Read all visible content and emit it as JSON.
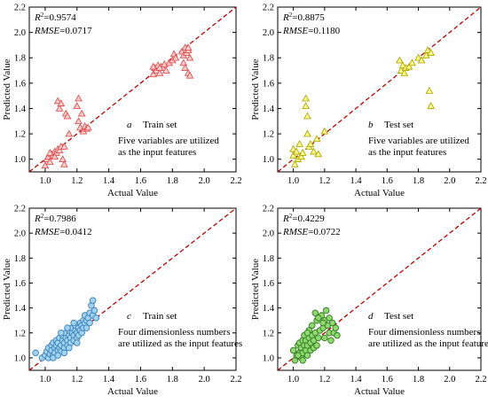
{
  "figure": {
    "chart_data": [
      {
        "panel": "a",
        "type": "scatter",
        "xlabel": "Actual Value",
        "ylabel": "Predicted Value",
        "xlim": [
          0.9,
          2.2
        ],
        "ylim": [
          0.9,
          2.2
        ],
        "xticks": [
          "1.0",
          "1.2",
          "1.4",
          "1.6",
          "1.8",
          "2.0",
          "2.2"
        ],
        "yticks": [
          "1.0",
          "1.2",
          "1.4",
          "1.6",
          "1.8",
          "2.0",
          "2.2"
        ],
        "stats": {
          "r2_label": "R",
          "r2_value": "=0.9574",
          "rmse_label": "RMSE",
          "rmse_value": "=0.0717"
        },
        "set_label": "Train set",
        "note_lines": [
          "Five variables are utilized",
          "as the input features"
        ],
        "marker": "triangle",
        "fill": "#ffd0d0",
        "stroke": "#e05050",
        "reference_line": {
          "from": [
            0.9,
            0.9
          ],
          "to": [
            2.2,
            2.2
          ],
          "color": "#c00000",
          "style": "dashed"
        },
        "points": [
          [
            1.0,
            0.95
          ],
          [
            1.01,
            1.0
          ],
          [
            1.02,
            1.02
          ],
          [
            1.03,
            0.98
          ],
          [
            1.04,
            1.04
          ],
          [
            1.05,
            1.03
          ],
          [
            1.06,
            1.06
          ],
          [
            1.07,
            1.05
          ],
          [
            1.08,
            1.08
          ],
          [
            1.09,
            1.07
          ],
          [
            1.1,
            1.1
          ],
          [
            1.08,
            1.46
          ],
          [
            1.09,
            1.4
          ],
          [
            1.1,
            1.44
          ],
          [
            1.11,
            1.0
          ],
          [
            1.12,
            1.1
          ],
          [
            1.13,
            1.36
          ],
          [
            1.14,
            1.34
          ],
          [
            1.15,
            1.2
          ],
          [
            1.2,
            1.42
          ],
          [
            1.21,
            1.48
          ],
          [
            1.21,
            1.3
          ],
          [
            1.22,
            1.25
          ],
          [
            1.23,
            1.36
          ],
          [
            1.24,
            1.22
          ],
          [
            1.25,
            1.26
          ],
          [
            1.26,
            1.24
          ],
          [
            1.27,
            1.25
          ],
          [
            1.03,
            1.05
          ],
          [
            1.06,
            1.02
          ],
          [
            1.12,
            0.96
          ],
          [
            1.68,
            1.67
          ],
          [
            1.69,
            1.72
          ],
          [
            1.7,
            1.7
          ],
          [
            1.71,
            1.74
          ],
          [
            1.72,
            1.68
          ],
          [
            1.73,
            1.73
          ],
          [
            1.74,
            1.72
          ],
          [
            1.75,
            1.75
          ],
          [
            1.76,
            1.7
          ],
          [
            1.78,
            1.76
          ],
          [
            1.8,
            1.78
          ],
          [
            1.81,
            1.83
          ],
          [
            1.82,
            1.8
          ],
          [
            1.86,
            1.85
          ],
          [
            1.87,
            1.82
          ],
          [
            1.88,
            1.88
          ],
          [
            1.89,
            1.84
          ],
          [
            1.9,
            1.86
          ],
          [
            1.91,
            1.8
          ],
          [
            1.87,
            1.76
          ],
          [
            1.88,
            1.72
          ],
          [
            1.9,
            1.68
          ],
          [
            1.91,
            1.66
          ],
          [
            1.68,
            1.73
          ],
          [
            1.72,
            1.72
          ],
          [
            1.9,
            1.88
          ]
        ]
      },
      {
        "panel": "b",
        "type": "scatter",
        "xlabel": "Actual Value",
        "ylabel": "Predicted Value",
        "xlim": [
          0.9,
          2.2
        ],
        "ylim": [
          0.9,
          2.2
        ],
        "xticks": [
          "1.0",
          "1.2",
          "1.4",
          "1.6",
          "1.8",
          "2.0",
          "2.2"
        ],
        "yticks": [
          "1.0",
          "1.2",
          "1.4",
          "1.6",
          "1.8",
          "2.0",
          "2.2"
        ],
        "stats": {
          "r2_label": "R",
          "r2_value": "=0.8875",
          "rmse_label": "RMSE",
          "rmse_value": "=0.1180"
        },
        "set_label": "Test set",
        "note_lines": [
          "Five variables are utilized",
          "as the input features"
        ],
        "marker": "triangle",
        "fill": "#ffff90",
        "stroke": "#b0a800",
        "reference_line": {
          "from": [
            0.9,
            0.9
          ],
          "to": [
            2.2,
            2.2
          ],
          "color": "#c00000",
          "style": "dashed"
        },
        "points": [
          [
            1.0,
            1.08
          ],
          [
            1.0,
            1.03
          ],
          [
            1.01,
            0.96
          ],
          [
            1.02,
            1.06
          ],
          [
            1.03,
            1.0
          ],
          [
            1.05,
            1.02
          ],
          [
            1.06,
            1.05
          ],
          [
            1.08,
            1.42
          ],
          [
            1.08,
            1.48
          ],
          [
            1.09,
            1.34
          ],
          [
            1.09,
            1.2
          ],
          [
            1.1,
            1.1
          ],
          [
            1.11,
            1.12
          ],
          [
            1.13,
            1.06
          ],
          [
            1.15,
            1.16
          ],
          [
            1.16,
            1.04
          ],
          [
            1.2,
            1.22
          ],
          [
            1.04,
            1.12
          ],
          [
            1.68,
            1.78
          ],
          [
            1.69,
            1.7
          ],
          [
            1.7,
            1.74
          ],
          [
            1.71,
            1.68
          ],
          [
            1.72,
            1.72
          ],
          [
            1.74,
            1.73
          ],
          [
            1.76,
            1.76
          ],
          [
            1.8,
            1.8
          ],
          [
            1.82,
            1.78
          ],
          [
            1.85,
            1.82
          ],
          [
            1.86,
            1.86
          ],
          [
            1.88,
            1.84
          ],
          [
            1.87,
            1.54
          ],
          [
            1.88,
            1.42
          ]
        ]
      },
      {
        "panel": "c",
        "type": "scatter",
        "xlabel": "Actual Value",
        "ylabel": "Predicted Value",
        "xlim": [
          0.9,
          2.2
        ],
        "ylim": [
          0.9,
          2.2
        ],
        "xticks": [
          "1.0",
          "1.2",
          "1.4",
          "1.6",
          "1.8",
          "2.0",
          "2.2"
        ],
        "yticks": [
          "1.0",
          "1.2",
          "1.4",
          "1.6",
          "1.8",
          "2.0",
          "2.2"
        ],
        "stats": {
          "r2_label": "R",
          "r2_value": "=0.7986",
          "rmse_label": "RMSE",
          "rmse_value": "=0.0412"
        },
        "set_label": "Train set",
        "note_lines": [
          "Four dimensionless numbers",
          "are utilized as the input features"
        ],
        "marker": "circle",
        "fill": "#9fd3f0",
        "stroke": "#3a7fb8",
        "reference_line": {
          "from": [
            0.9,
            0.9
          ],
          "to": [
            2.2,
            2.2
          ],
          "color": "#c00000",
          "style": "dashed"
        },
        "points": [
          [
            0.94,
            1.04
          ],
          [
            0.98,
            1.0
          ],
          [
            1.0,
            1.02
          ],
          [
            1.01,
            1.05
          ],
          [
            1.02,
            1.0
          ],
          [
            1.02,
            1.08
          ],
          [
            1.03,
            1.03
          ],
          [
            1.04,
            1.1
          ],
          [
            1.04,
            1.06
          ],
          [
            1.05,
            1.02
          ],
          [
            1.05,
            1.12
          ],
          [
            1.06,
            1.08
          ],
          [
            1.06,
            1.04
          ],
          [
            1.07,
            1.1
          ],
          [
            1.07,
            1.14
          ],
          [
            1.08,
            1.06
          ],
          [
            1.08,
            1.12
          ],
          [
            1.09,
            1.08
          ],
          [
            1.09,
            1.16
          ],
          [
            1.1,
            1.1
          ],
          [
            1.1,
            1.05
          ],
          [
            1.11,
            1.14
          ],
          [
            1.11,
            1.18
          ],
          [
            1.12,
            1.12
          ],
          [
            1.12,
            1.08
          ],
          [
            1.13,
            1.16
          ],
          [
            1.13,
            1.2
          ],
          [
            1.14,
            1.14
          ],
          [
            1.14,
            1.1
          ],
          [
            1.15,
            1.18
          ],
          [
            1.15,
            1.22
          ],
          [
            1.16,
            1.16
          ],
          [
            1.16,
            1.12
          ],
          [
            1.17,
            1.2
          ],
          [
            1.17,
            1.24
          ],
          [
            1.18,
            1.18
          ],
          [
            1.18,
            1.14
          ],
          [
            1.19,
            1.22
          ],
          [
            1.19,
            1.26
          ],
          [
            1.2,
            1.2
          ],
          [
            1.2,
            1.16
          ],
          [
            1.21,
            1.24
          ],
          [
            1.21,
            1.18
          ],
          [
            1.22,
            1.28
          ],
          [
            1.22,
            1.22
          ],
          [
            1.23,
            1.26
          ],
          [
            1.23,
            1.2
          ],
          [
            1.24,
            1.3
          ],
          [
            1.24,
            1.24
          ],
          [
            1.25,
            1.28
          ],
          [
            1.25,
            1.34
          ],
          [
            1.26,
            1.3
          ],
          [
            1.26,
            1.24
          ],
          [
            1.27,
            1.32
          ],
          [
            1.28,
            1.36
          ],
          [
            1.28,
            1.28
          ],
          [
            1.29,
            1.42
          ],
          [
            1.3,
            1.46
          ],
          [
            1.3,
            1.34
          ],
          [
            1.31,
            1.38
          ],
          [
            1.32,
            1.32
          ],
          [
            1.05,
            1.0
          ],
          [
            1.08,
            1.02
          ],
          [
            1.12,
            1.04
          ],
          [
            1.15,
            1.08
          ],
          [
            1.2,
            1.12
          ],
          [
            1.1,
            1.2
          ],
          [
            1.14,
            1.24
          ],
          [
            1.18,
            1.28
          ]
        ]
      },
      {
        "panel": "d",
        "type": "scatter",
        "xlabel": "Actual Value",
        "ylabel": "Predicted Value",
        "xlim": [
          0.9,
          2.2
        ],
        "ylim": [
          0.9,
          2.2
        ],
        "xticks": [
          "1.0",
          "1.2",
          "1.4",
          "1.6",
          "1.8",
          "2.0",
          "2.2"
        ],
        "yticks": [
          "1.0",
          "1.2",
          "1.4",
          "1.6",
          "1.8",
          "2.0",
          "2.2"
        ],
        "stats": {
          "r2_label": "R",
          "r2_value": "=0.4229",
          "rmse_label": "RMSE",
          "rmse_value": "=0.0722"
        },
        "set_label": "Test set",
        "note_lines": [
          "Four  dimensionless numbers",
          "are utilized as the input features"
        ],
        "marker": "circle",
        "fill": "#8fd870",
        "stroke": "#2f7a1e",
        "reference_line": {
          "from": [
            0.9,
            0.9
          ],
          "to": [
            2.2,
            2.2
          ],
          "color": "#c00000",
          "style": "dashed"
        },
        "points": [
          [
            1.0,
            1.06
          ],
          [
            1.01,
            0.98
          ],
          [
            1.02,
            1.02
          ],
          [
            1.03,
            1.1
          ],
          [
            1.04,
            1.04
          ],
          [
            1.04,
            1.12
          ],
          [
            1.05,
            1.0
          ],
          [
            1.05,
            1.08
          ],
          [
            1.06,
            1.14
          ],
          [
            1.06,
            1.04
          ],
          [
            1.07,
            1.1
          ],
          [
            1.07,
            1.18
          ],
          [
            1.08,
            1.06
          ],
          [
            1.08,
            1.14
          ],
          [
            1.09,
            1.02
          ],
          [
            1.09,
            1.1
          ],
          [
            1.1,
            1.16
          ],
          [
            1.1,
            1.22
          ],
          [
            1.11,
            1.06
          ],
          [
            1.11,
            1.12
          ],
          [
            1.12,
            1.18
          ],
          [
            1.12,
            1.26
          ],
          [
            1.13,
            1.08
          ],
          [
            1.13,
            1.14
          ],
          [
            1.14,
            1.2
          ],
          [
            1.15,
            1.1
          ],
          [
            1.15,
            1.3
          ],
          [
            1.16,
            1.16
          ],
          [
            1.17,
            1.22
          ],
          [
            1.18,
            1.34
          ],
          [
            1.19,
            1.24
          ],
          [
            1.2,
            1.16
          ],
          [
            1.2,
            1.3
          ],
          [
            1.21,
            1.38
          ],
          [
            1.22,
            1.26
          ],
          [
            1.23,
            1.2
          ],
          [
            1.23,
            1.32
          ],
          [
            1.24,
            1.14
          ],
          [
            1.25,
            1.28
          ],
          [
            1.26,
            1.2
          ],
          [
            1.27,
            1.24
          ],
          [
            1.28,
            1.18
          ],
          [
            1.14,
            1.36
          ],
          [
            1.16,
            1.32
          ],
          [
            1.03,
            1.02
          ],
          [
            1.06,
            0.98
          ],
          [
            1.09,
            1.2
          ],
          [
            1.19,
            1.28
          ]
        ]
      }
    ]
  }
}
